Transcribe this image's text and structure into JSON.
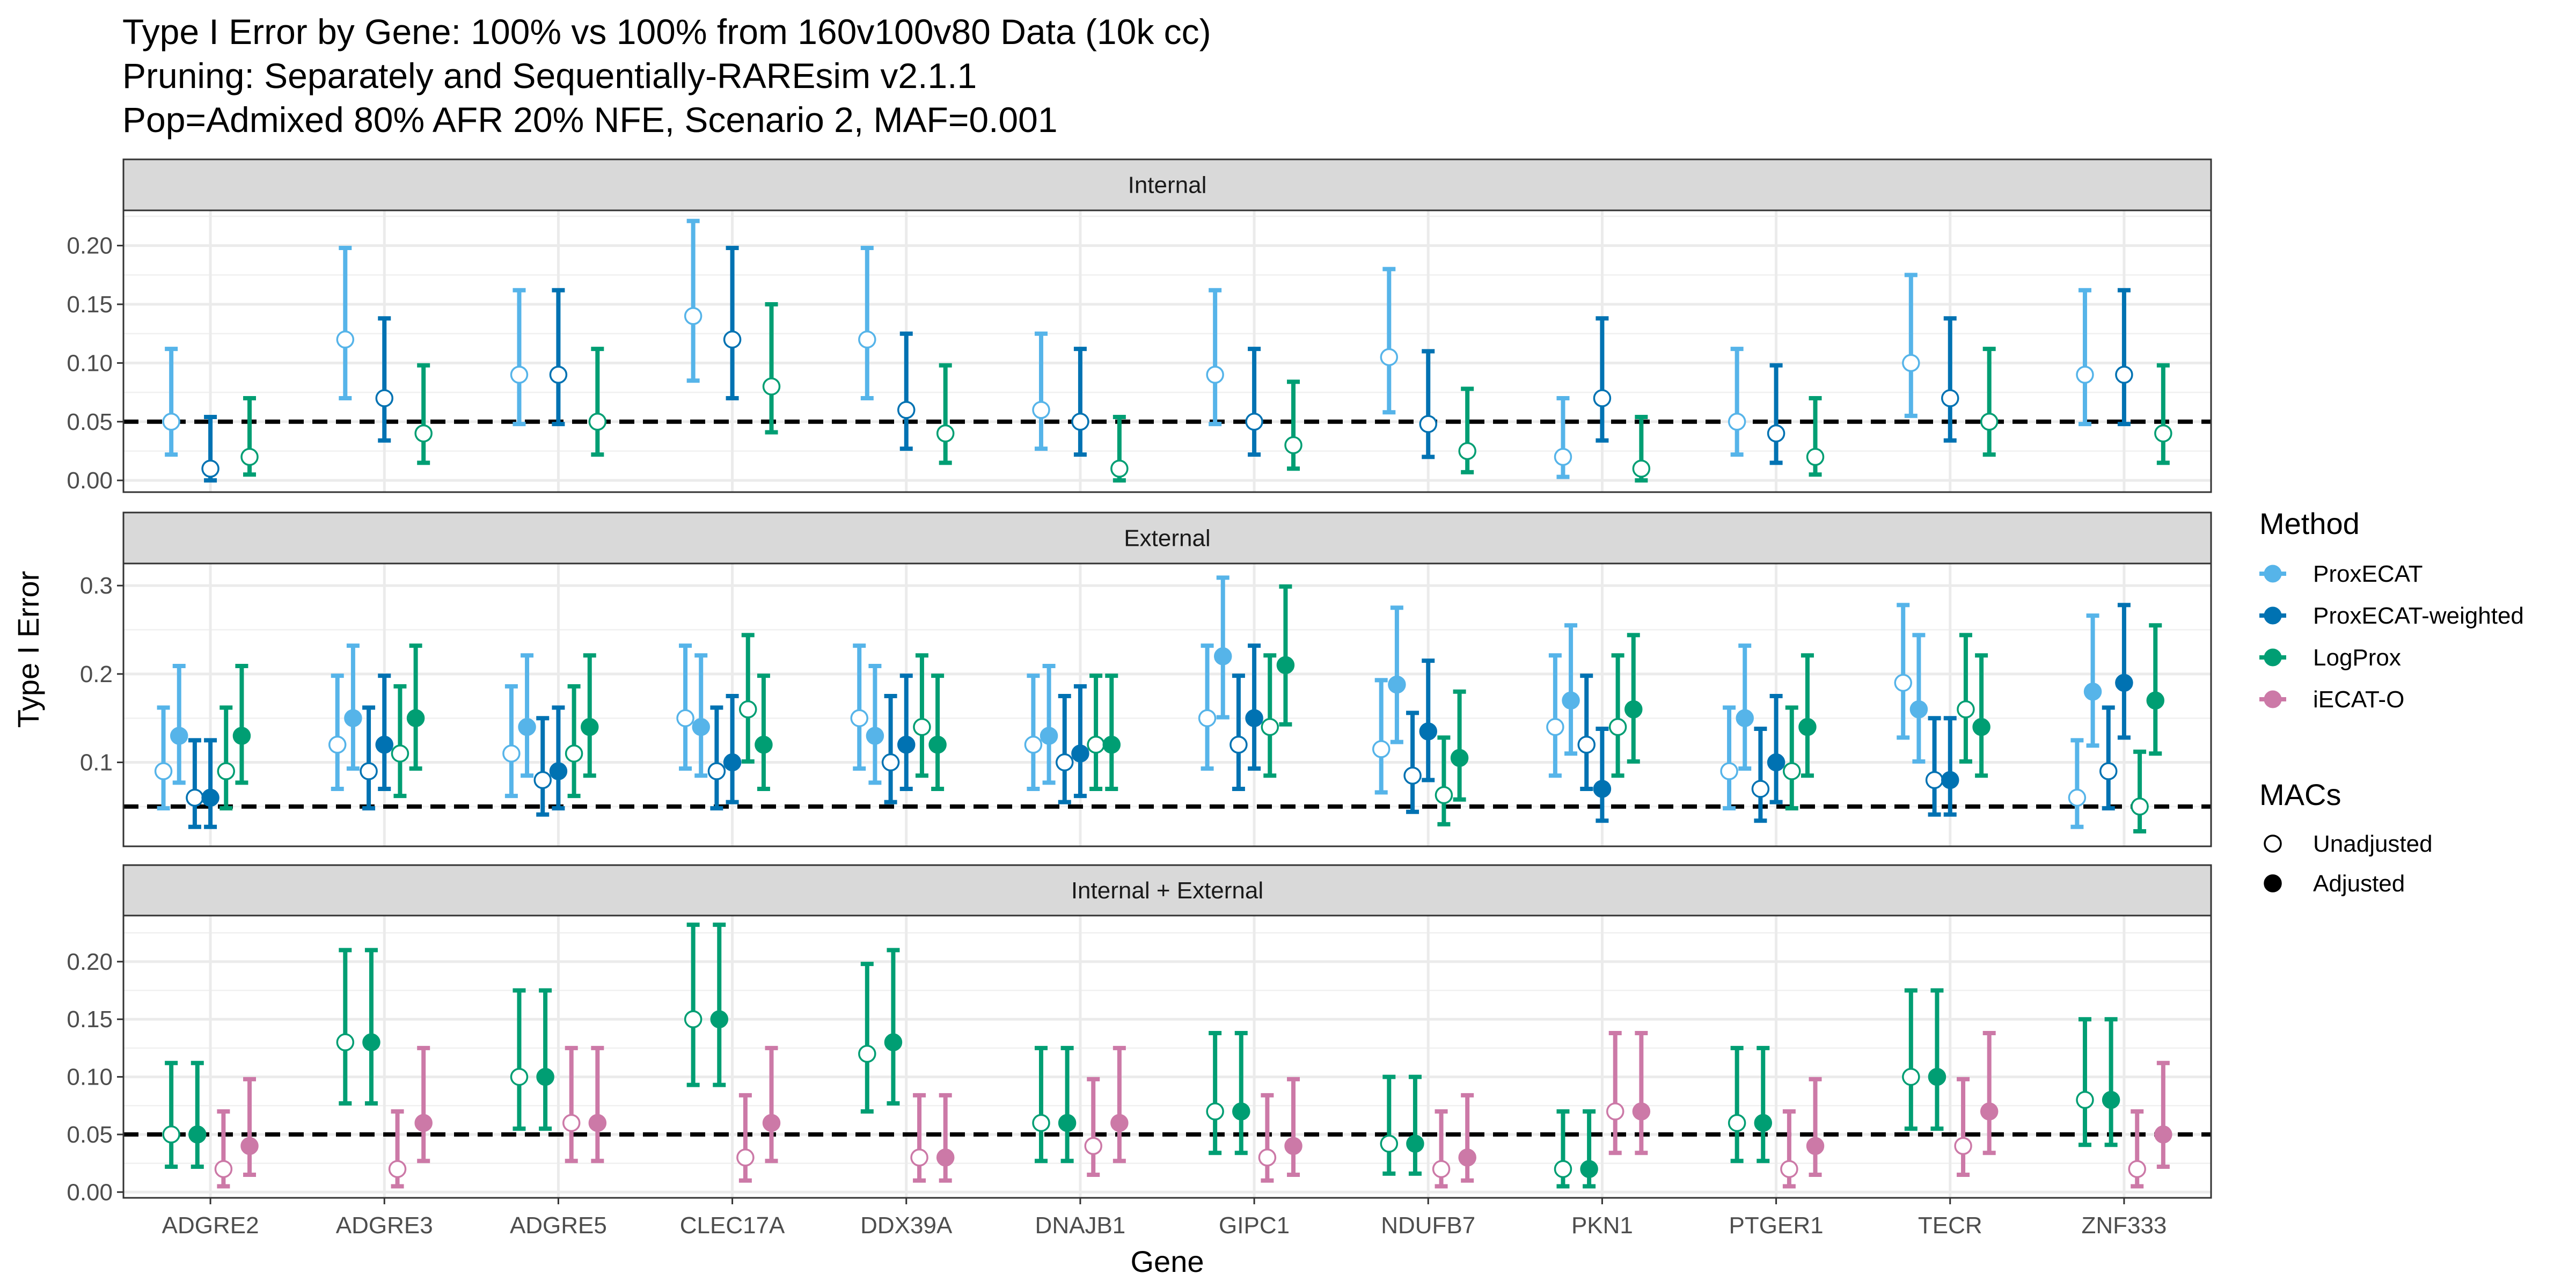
{
  "chart_data": {
    "type": "errorbar",
    "title": [
      "Type I Error by Gene: 100% vs 100% from 160v100v80 Data (10k cc)",
      "Pruning: Separately and Sequentially-RAREsim v2.1.1",
      "Pop=Admixed 80% AFR 20% NFE, Scenario 2, MAF=0.001"
    ],
    "xlabel": "Gene",
    "ylabel": "Type I Error",
    "reference_line": 0.05,
    "grid": true,
    "legend_position": "right",
    "categories": [
      "ADGRE2",
      "ADGRE3",
      "ADGRE5",
      "CLEC17A",
      "DDX39A",
      "DNAJB1",
      "GIPC1",
      "NDUFB7",
      "PKN1",
      "PTGER1",
      "TECR",
      "ZNF333"
    ],
    "legend": {
      "method_title": "Method",
      "methods": [
        {
          "name": "ProxECAT",
          "color": "#56B4E9"
        },
        {
          "name": "ProxECAT-weighted",
          "color": "#0072B2"
        },
        {
          "name": "LogProx",
          "color": "#009E73"
        },
        {
          "name": "iECAT-O",
          "color": "#CC79A7"
        }
      ],
      "macs_title": "MACs",
      "macs": [
        {
          "name": "Unadjusted",
          "filled": false
        },
        {
          "name": "Adjusted",
          "filled": true
        }
      ]
    },
    "panels": [
      {
        "name": "Internal",
        "ylim": [
          -0.01,
          0.23
        ],
        "yticks": [
          0.0,
          0.05,
          0.1,
          0.15,
          0.2
        ],
        "ytick_labels": [
          "0.00",
          "0.05",
          "0.10",
          "0.15",
          "0.20"
        ],
        "series": [
          {
            "method": "ProxECAT",
            "macs": "Unadjusted",
            "offset": -0.3,
            "values": [
              0.05,
              0.12,
              0.09,
              0.14,
              0.12,
              0.06,
              0.09,
              0.105,
              0.02,
              0.05,
              0.1,
              0.09
            ],
            "lower": [
              0.022,
              0.07,
              0.048,
              0.085,
              0.07,
              0.027,
              0.048,
              0.058,
              0.003,
              0.022,
              0.055,
              0.048
            ],
            "upper": [
              0.112,
              0.198,
              0.162,
              0.221,
              0.198,
              0.125,
              0.162,
              0.18,
              0.07,
              0.112,
              0.175,
              0.162
            ]
          },
          {
            "method": "ProxECAT-weighted",
            "macs": "Unadjusted",
            "offset": 0.0,
            "values": [
              0.01,
              0.07,
              0.09,
              0.12,
              0.06,
              0.05,
              0.05,
              0.048,
              0.07,
              0.04,
              0.07,
              0.09
            ],
            "lower": [
              0.0,
              0.034,
              0.048,
              0.07,
              0.027,
              0.022,
              0.022,
              0.02,
              0.034,
              0.015,
              0.034,
              0.048
            ],
            "upper": [
              0.054,
              0.138,
              0.162,
              0.198,
              0.125,
              0.112,
              0.112,
              0.11,
              0.138,
              0.098,
              0.138,
              0.162
            ]
          },
          {
            "method": "LogProx",
            "macs": "Unadjusted",
            "offset": 0.3,
            "values": [
              0.02,
              0.04,
              0.05,
              0.08,
              0.04,
              0.01,
              0.03,
              0.025,
              0.01,
              0.02,
              0.05,
              0.04
            ],
            "lower": [
              0.005,
              0.015,
              0.022,
              0.041,
              0.015,
              0.0,
              0.01,
              0.007,
              0.0,
              0.005,
              0.022,
              0.015
            ],
            "upper": [
              0.07,
              0.098,
              0.112,
              0.15,
              0.098,
              0.054,
              0.084,
              0.078,
              0.054,
              0.07,
              0.112,
              0.098
            ]
          }
        ]
      },
      {
        "name": "External",
        "ylim": [
          0.005,
          0.325
        ],
        "yticks": [
          0.1,
          0.2,
          0.3
        ],
        "ytick_labels": [
          "0.1",
          "0.2",
          "0.3"
        ],
        "series": [
          {
            "method": "ProxECAT",
            "macs": "Unadjusted",
            "offset": -0.36,
            "values": [
              0.09,
              0.12,
              0.11,
              0.15,
              0.15,
              0.12,
              0.15,
              0.115,
              0.14,
              0.09,
              0.19,
              0.06
            ],
            "lower": [
              0.048,
              0.07,
              0.062,
              0.093,
              0.093,
              0.07,
              0.093,
              0.066,
              0.085,
              0.048,
              0.128,
              0.027
            ],
            "upper": [
              0.162,
              0.198,
              0.186,
              0.232,
              0.232,
              0.198,
              0.232,
              0.193,
              0.221,
              0.162,
              0.278,
              0.125
            ]
          },
          {
            "method": "ProxECAT",
            "macs": "Adjusted",
            "offset": -0.24,
            "values": [
              0.13,
              0.15,
              0.14,
              0.14,
              0.13,
              0.13,
              0.22,
              0.188,
              0.17,
              0.15,
              0.16,
              0.18
            ],
            "lower": [
              0.077,
              0.093,
              0.085,
              0.085,
              0.077,
              0.077,
              0.151,
              0.123,
              0.11,
              0.093,
              0.101,
              0.119
            ],
            "upper": [
              0.209,
              0.232,
              0.221,
              0.221,
              0.209,
              0.209,
              0.309,
              0.275,
              0.255,
              0.232,
              0.244,
              0.266
            ]
          },
          {
            "method": "ProxECAT-weighted",
            "macs": "Unadjusted",
            "offset": -0.12,
            "values": [
              0.06,
              0.09,
              0.08,
              0.09,
              0.1,
              0.1,
              0.12,
              0.085,
              0.12,
              0.07,
              0.08,
              0.09
            ],
            "lower": [
              0.027,
              0.048,
              0.041,
              0.048,
              0.055,
              0.055,
              0.07,
              0.044,
              0.07,
              0.034,
              0.041,
              0.048
            ],
            "upper": [
              0.125,
              0.162,
              0.15,
              0.162,
              0.175,
              0.175,
              0.198,
              0.156,
              0.198,
              0.138,
              0.15,
              0.162
            ]
          },
          {
            "method": "ProxECAT-weighted",
            "macs": "Adjusted",
            "offset": 0.0,
            "values": [
              0.06,
              0.12,
              0.09,
              0.1,
              0.12,
              0.11,
              0.15,
              0.135,
              0.07,
              0.1,
              0.08,
              0.19
            ],
            "lower": [
              0.027,
              0.07,
              0.048,
              0.055,
              0.07,
              0.062,
              0.093,
              0.08,
              0.034,
              0.055,
              0.041,
              0.128
            ],
            "upper": [
              0.125,
              0.198,
              0.162,
              0.175,
              0.198,
              0.186,
              0.232,
              0.215,
              0.138,
              0.175,
              0.15,
              0.278
            ]
          },
          {
            "method": "LogProx",
            "macs": "Unadjusted",
            "offset": 0.12,
            "values": [
              0.09,
              0.11,
              0.11,
              0.16,
              0.14,
              0.12,
              0.14,
              0.063,
              0.14,
              0.09,
              0.16,
              0.05
            ],
            "lower": [
              0.048,
              0.062,
              0.062,
              0.101,
              0.085,
              0.07,
              0.085,
              0.03,
              0.085,
              0.048,
              0.101,
              0.022
            ],
            "upper": [
              0.162,
              0.186,
              0.186,
              0.244,
              0.221,
              0.198,
              0.221,
              0.128,
              0.221,
              0.162,
              0.244,
              0.112
            ]
          },
          {
            "method": "LogProx",
            "macs": "Adjusted",
            "offset": 0.24,
            "values": [
              0.13,
              0.15,
              0.14,
              0.12,
              0.12,
              0.12,
              0.21,
              0.105,
              0.16,
              0.14,
              0.14,
              0.17
            ],
            "lower": [
              0.077,
              0.093,
              0.085,
              0.07,
              0.07,
              0.07,
              0.143,
              0.058,
              0.101,
              0.085,
              0.085,
              0.11
            ],
            "upper": [
              0.209,
              0.232,
              0.221,
              0.198,
              0.198,
              0.198,
              0.299,
              0.18,
              0.244,
              0.221,
              0.221,
              0.255
            ]
          }
        ]
      },
      {
        "name": "Internal + External",
        "ylim": [
          -0.005,
          0.24
        ],
        "yticks": [
          0.0,
          0.05,
          0.1,
          0.15,
          0.2
        ],
        "ytick_labels": [
          "0.00",
          "0.05",
          "0.10",
          "0.15",
          "0.20"
        ],
        "series": [
          {
            "method": "LogProx",
            "macs": "Unadjusted",
            "offset": -0.3,
            "values": [
              0.05,
              0.13,
              0.1,
              0.15,
              0.12,
              0.06,
              0.07,
              0.042,
              0.02,
              0.06,
              0.1,
              0.08
            ],
            "lower": [
              0.022,
              0.077,
              0.055,
              0.093,
              0.07,
              0.027,
              0.034,
              0.016,
              0.005,
              0.027,
              0.055,
              0.041
            ],
            "upper": [
              0.112,
              0.21,
              0.175,
              0.232,
              0.198,
              0.125,
              0.138,
              0.1,
              0.07,
              0.125,
              0.175,
              0.15
            ]
          },
          {
            "method": "LogProx",
            "macs": "Adjusted",
            "offset": -0.1,
            "values": [
              0.05,
              0.13,
              0.1,
              0.15,
              0.13,
              0.06,
              0.07,
              0.042,
              0.02,
              0.06,
              0.1,
              0.08
            ],
            "lower": [
              0.022,
              0.077,
              0.055,
              0.093,
              0.077,
              0.027,
              0.034,
              0.016,
              0.005,
              0.027,
              0.055,
              0.041
            ],
            "upper": [
              0.112,
              0.21,
              0.175,
              0.232,
              0.21,
              0.125,
              0.138,
              0.1,
              0.07,
              0.125,
              0.175,
              0.15
            ]
          },
          {
            "method": "iECAT-O",
            "macs": "Unadjusted",
            "offset": 0.1,
            "values": [
              0.02,
              0.02,
              0.06,
              0.03,
              0.03,
              0.04,
              0.03,
              0.02,
              0.07,
              0.02,
              0.04,
              0.02
            ],
            "lower": [
              0.005,
              0.005,
              0.027,
              0.01,
              0.01,
              0.015,
              0.01,
              0.005,
              0.034,
              0.005,
              0.015,
              0.005
            ],
            "upper": [
              0.07,
              0.07,
              0.125,
              0.084,
              0.084,
              0.098,
              0.084,
              0.07,
              0.138,
              0.07,
              0.098,
              0.07
            ]
          },
          {
            "method": "iECAT-O",
            "macs": "Adjusted",
            "offset": 0.3,
            "values": [
              0.04,
              0.06,
              0.06,
              0.06,
              0.03,
              0.06,
              0.04,
              0.03,
              0.07,
              0.04,
              0.07,
              0.05
            ],
            "lower": [
              0.015,
              0.027,
              0.027,
              0.027,
              0.01,
              0.027,
              0.015,
              0.01,
              0.034,
              0.015,
              0.034,
              0.022
            ],
            "upper": [
              0.098,
              0.125,
              0.125,
              0.125,
              0.084,
              0.125,
              0.098,
              0.084,
              0.138,
              0.098,
              0.138,
              0.112
            ]
          }
        ]
      }
    ]
  }
}
